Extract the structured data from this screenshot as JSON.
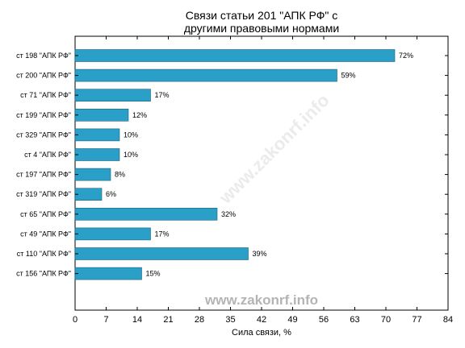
{
  "chart_data": {
    "type": "bar",
    "orientation": "horizontal",
    "title_line1": "Связи статьи 201 \"АПК РФ\" с",
    "title_line2": "другими правовыми нормами",
    "xlabel": "Сила связи, %",
    "categories": [
      "ст 198 \"АПК РФ\"",
      "ст 200 \"АПК РФ\"",
      "ст 71 \"АПК РФ\"",
      "ст 199 \"АПК РФ\"",
      "ст 329 \"АПК РФ\"",
      "ст 4 \"АПК РФ\"",
      "ст 197 \"АПК РФ\"",
      "ст 319 \"АПК РФ\"",
      "ст 65 \"АПК РФ\"",
      "ст 49 \"АПК РФ\"",
      "ст 110 \"АПК РФ\"",
      "ст 156 \"АПК РФ\""
    ],
    "values": [
      72,
      59,
      17,
      12,
      10,
      10,
      8,
      6,
      32,
      17,
      39,
      15
    ],
    "value_labels": [
      "72%",
      "59%",
      "17%",
      "12%",
      "10%",
      "10%",
      "8%",
      "6%",
      "32%",
      "17%",
      "39%",
      "15%"
    ],
    "xlim": [
      0,
      84
    ],
    "xticks": [
      0,
      7,
      14,
      21,
      28,
      35,
      42,
      49,
      56,
      63,
      70,
      77,
      84
    ],
    "bar_color": "#2aa0c8",
    "grid": false,
    "watermark": "www.zakonrf.info"
  }
}
